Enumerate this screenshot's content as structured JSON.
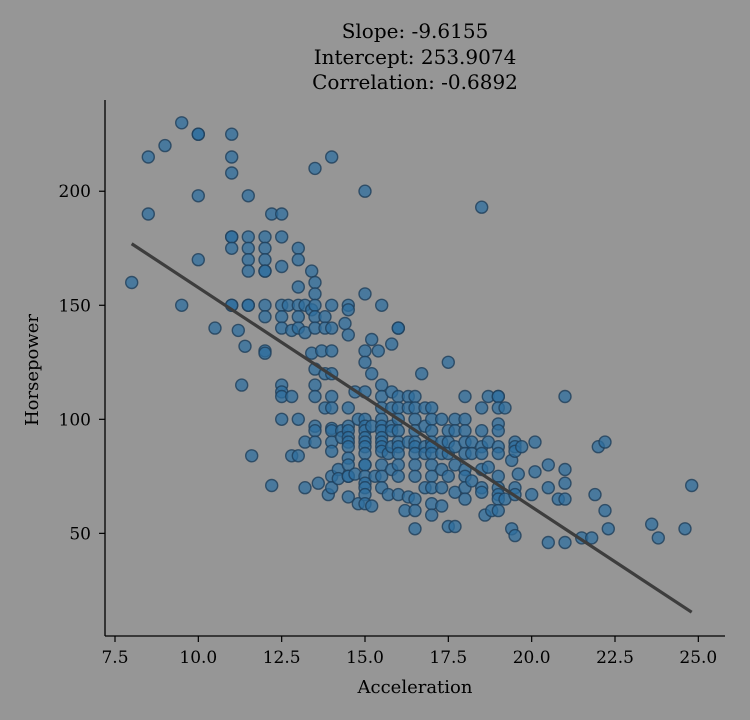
{
  "chart_data": {
    "type": "scatter",
    "title_lines": [
      "Slope: -9.6155",
      "Intercept: 253.9074",
      "Correlation: -0.6892"
    ],
    "xlabel": "Acceleration",
    "ylabel": "Horsepower",
    "xlim": [
      7.2,
      25.8
    ],
    "ylim": [
      5,
      240
    ],
    "xticks": [
      7.5,
      10.0,
      12.5,
      15.0,
      17.5,
      20.0,
      22.5,
      25.0
    ],
    "xtick_labels": [
      "7.5",
      "10.0",
      "12.5",
      "15.0",
      "17.5",
      "20.0",
      "22.5",
      "25.0"
    ],
    "yticks": [
      50,
      100,
      150,
      200
    ],
    "ytick_labels": [
      "50",
      "100",
      "150",
      "200"
    ],
    "fit_line": {
      "slope": -9.6155,
      "intercept": 253.9074,
      "x_range": [
        8.0,
        24.8
      ]
    },
    "grid": false,
    "point_color": "#2f6f9f",
    "line_color": "#3d3d3d",
    "background_color": "#969696",
    "points": [
      [
        8.0,
        160
      ],
      [
        8.5,
        215
      ],
      [
        8.5,
        190
      ],
      [
        9.0,
        220
      ],
      [
        9.5,
        230
      ],
      [
        9.5,
        150
      ],
      [
        10.0,
        225
      ],
      [
        10.0,
        225
      ],
      [
        10.0,
        198
      ],
      [
        10.0,
        170
      ],
      [
        10.5,
        140
      ],
      [
        11.0,
        225
      ],
      [
        11.0,
        215
      ],
      [
        11.0,
        208
      ],
      [
        11.0,
        180
      ],
      [
        11.0,
        180
      ],
      [
        11.0,
        175
      ],
      [
        11.0,
        150
      ],
      [
        11.0,
        150
      ],
      [
        11.2,
        139
      ],
      [
        11.3,
        115
      ],
      [
        11.4,
        132
      ],
      [
        11.5,
        198
      ],
      [
        11.5,
        180
      ],
      [
        11.5,
        175
      ],
      [
        11.5,
        170
      ],
      [
        11.5,
        165
      ],
      [
        11.5,
        150
      ],
      [
        11.5,
        150
      ],
      [
        11.6,
        84
      ],
      [
        12.0,
        180
      ],
      [
        12.0,
        175
      ],
      [
        12.0,
        170
      ],
      [
        12.0,
        165
      ],
      [
        12.0,
        165
      ],
      [
        12.0,
        150
      ],
      [
        12.0,
        145
      ],
      [
        12.0,
        130
      ],
      [
        12.0,
        129
      ],
      [
        12.2,
        190
      ],
      [
        12.2,
        71
      ],
      [
        12.5,
        190
      ],
      [
        12.5,
        180
      ],
      [
        12.5,
        167
      ],
      [
        12.5,
        150
      ],
      [
        12.5,
        145
      ],
      [
        12.5,
        140
      ],
      [
        12.5,
        115
      ],
      [
        12.5,
        112
      ],
      [
        12.5,
        110
      ],
      [
        12.5,
        100
      ],
      [
        12.7,
        150
      ],
      [
        12.8,
        139
      ],
      [
        12.8,
        110
      ],
      [
        12.8,
        84
      ],
      [
        13.0,
        175
      ],
      [
        13.0,
        170
      ],
      [
        13.0,
        158
      ],
      [
        13.0,
        150
      ],
      [
        13.0,
        145
      ],
      [
        13.0,
        140
      ],
      [
        13.0,
        100
      ],
      [
        13.0,
        84
      ],
      [
        13.2,
        150
      ],
      [
        13.2,
        138
      ],
      [
        13.2,
        90
      ],
      [
        13.2,
        70
      ],
      [
        13.4,
        165
      ],
      [
        13.4,
        148
      ],
      [
        13.4,
        129
      ],
      [
        13.5,
        160
      ],
      [
        13.5,
        155
      ],
      [
        13.5,
        150
      ],
      [
        13.5,
        145
      ],
      [
        13.5,
        140
      ],
      [
        13.5,
        122
      ],
      [
        13.5,
        115
      ],
      [
        13.5,
        110
      ],
      [
        13.5,
        97
      ],
      [
        13.5,
        95
      ],
      [
        13.5,
        210
      ],
      [
        13.5,
        90
      ],
      [
        13.6,
        72
      ],
      [
        13.7,
        130
      ],
      [
        13.8,
        145
      ],
      [
        13.8,
        140
      ],
      [
        13.8,
        120
      ],
      [
        13.8,
        105
      ],
      [
        13.9,
        67
      ],
      [
        14.0,
        215
      ],
      [
        14.0,
        150
      ],
      [
        14.0,
        140
      ],
      [
        14.0,
        130
      ],
      [
        14.0,
        120
      ],
      [
        14.0,
        110
      ],
      [
        14.0,
        105
      ],
      [
        14.0,
        96
      ],
      [
        14.0,
        95
      ],
      [
        14.0,
        90
      ],
      [
        14.0,
        86
      ],
      [
        14.0,
        75
      ],
      [
        14.0,
        70
      ],
      [
        14.2,
        78
      ],
      [
        14.2,
        74
      ],
      [
        14.3,
        95
      ],
      [
        14.3,
        92
      ],
      [
        14.4,
        142
      ],
      [
        14.5,
        150
      ],
      [
        14.5,
        148
      ],
      [
        14.5,
        137
      ],
      [
        14.5,
        105
      ],
      [
        14.5,
        97
      ],
      [
        14.5,
        95
      ],
      [
        14.5,
        92
      ],
      [
        14.5,
        90
      ],
      [
        14.5,
        88
      ],
      [
        14.5,
        83
      ],
      [
        14.5,
        80
      ],
      [
        14.5,
        75
      ],
      [
        14.5,
        75
      ],
      [
        14.5,
        66
      ],
      [
        14.7,
        112
      ],
      [
        14.7,
        76
      ],
      [
        14.8,
        100
      ],
      [
        14.8,
        63
      ],
      [
        15.0,
        200
      ],
      [
        15.0,
        155
      ],
      [
        15.0,
        130
      ],
      [
        15.0,
        125
      ],
      [
        15.0,
        112
      ],
      [
        15.0,
        100
      ],
      [
        15.0,
        97
      ],
      [
        15.0,
        95
      ],
      [
        15.0,
        92
      ],
      [
        15.0,
        90
      ],
      [
        15.0,
        88
      ],
      [
        15.0,
        85
      ],
      [
        15.0,
        80
      ],
      [
        15.0,
        80
      ],
      [
        15.0,
        75
      ],
      [
        15.0,
        72
      ],
      [
        15.0,
        70
      ],
      [
        15.0,
        67
      ],
      [
        15.0,
        63
      ],
      [
        15.2,
        135
      ],
      [
        15.2,
        120
      ],
      [
        15.2,
        97
      ],
      [
        15.2,
        62
      ],
      [
        15.3,
        75
      ],
      [
        15.4,
        130
      ],
      [
        15.5,
        150
      ],
      [
        15.5,
        115
      ],
      [
        15.5,
        110
      ],
      [
        15.5,
        105
      ],
      [
        15.5,
        100
      ],
      [
        15.5,
        97
      ],
      [
        15.5,
        95
      ],
      [
        15.5,
        92
      ],
      [
        15.5,
        90
      ],
      [
        15.5,
        88
      ],
      [
        15.5,
        86
      ],
      [
        15.5,
        80
      ],
      [
        15.5,
        75
      ],
      [
        15.5,
        70
      ],
      [
        15.7,
        85
      ],
      [
        15.7,
        67
      ],
      [
        15.8,
        133
      ],
      [
        15.8,
        112
      ],
      [
        15.8,
        105
      ],
      [
        15.8,
        97
      ],
      [
        15.8,
        95
      ],
      [
        15.8,
        88
      ],
      [
        15.8,
        78
      ],
      [
        16.0,
        140
      ],
      [
        16.0,
        140
      ],
      [
        16.0,
        110
      ],
      [
        16.0,
        105
      ],
      [
        16.0,
        100
      ],
      [
        16.0,
        95
      ],
      [
        16.0,
        90
      ],
      [
        16.0,
        88
      ],
      [
        16.0,
        85
      ],
      [
        16.0,
        80
      ],
      [
        16.0,
        75
      ],
      [
        16.0,
        67
      ],
      [
        16.2,
        60
      ],
      [
        16.3,
        110
      ],
      [
        16.3,
        105
      ],
      [
        16.3,
        90
      ],
      [
        16.3,
        66
      ],
      [
        16.5,
        110
      ],
      [
        16.5,
        105
      ],
      [
        16.5,
        100
      ],
      [
        16.5,
        95
      ],
      [
        16.5,
        90
      ],
      [
        16.5,
        88
      ],
      [
        16.5,
        85
      ],
      [
        16.5,
        80
      ],
      [
        16.5,
        75
      ],
      [
        16.5,
        65
      ],
      [
        16.5,
        60
      ],
      [
        16.5,
        52
      ],
      [
        16.7,
        120
      ],
      [
        16.8,
        105
      ],
      [
        16.8,
        97
      ],
      [
        16.8,
        88
      ],
      [
        16.8,
        85
      ],
      [
        16.8,
        70
      ],
      [
        17.0,
        105
      ],
      [
        17.0,
        100
      ],
      [
        17.0,
        95
      ],
      [
        17.0,
        90
      ],
      [
        17.0,
        88
      ],
      [
        17.0,
        85
      ],
      [
        17.0,
        80
      ],
      [
        17.0,
        75
      ],
      [
        17.0,
        70
      ],
      [
        17.0,
        63
      ],
      [
        17.0,
        58
      ],
      [
        17.3,
        100
      ],
      [
        17.3,
        90
      ],
      [
        17.3,
        85
      ],
      [
        17.3,
        78
      ],
      [
        17.3,
        70
      ],
      [
        17.3,
        62
      ],
      [
        17.5,
        125
      ],
      [
        17.5,
        95
      ],
      [
        17.5,
        90
      ],
      [
        17.5,
        85
      ],
      [
        17.5,
        75
      ],
      [
        17.5,
        53
      ],
      [
        17.7,
        100
      ],
      [
        17.7,
        95
      ],
      [
        17.7,
        88
      ],
      [
        17.7,
        80
      ],
      [
        17.7,
        68
      ],
      [
        17.7,
        53
      ],
      [
        18.0,
        110
      ],
      [
        18.0,
        100
      ],
      [
        18.0,
        95
      ],
      [
        18.0,
        90
      ],
      [
        18.0,
        85
      ],
      [
        18.0,
        78
      ],
      [
        18.0,
        75
      ],
      [
        18.0,
        70
      ],
      [
        18.0,
        65
      ],
      [
        18.2,
        90
      ],
      [
        18.2,
        85
      ],
      [
        18.2,
        73
      ],
      [
        18.5,
        193
      ],
      [
        18.5,
        105
      ],
      [
        18.5,
        95
      ],
      [
        18.5,
        88
      ],
      [
        18.5,
        85
      ],
      [
        18.5,
        78
      ],
      [
        18.5,
        70
      ],
      [
        18.5,
        68
      ],
      [
        18.6,
        58
      ],
      [
        18.7,
        110
      ],
      [
        18.7,
        90
      ],
      [
        18.7,
        79
      ],
      [
        18.8,
        60
      ],
      [
        19.0,
        110
      ],
      [
        19.0,
        110
      ],
      [
        19.0,
        105
      ],
      [
        19.0,
        98
      ],
      [
        19.0,
        95
      ],
      [
        19.0,
        88
      ],
      [
        19.0,
        85
      ],
      [
        19.0,
        75
      ],
      [
        19.0,
        70
      ],
      [
        19.0,
        67
      ],
      [
        19.0,
        65
      ],
      [
        19.0,
        60
      ],
      [
        19.2,
        105
      ],
      [
        19.2,
        65
      ],
      [
        19.4,
        82
      ],
      [
        19.4,
        52
      ],
      [
        19.5,
        90
      ],
      [
        19.5,
        88
      ],
      [
        19.5,
        86
      ],
      [
        19.5,
        70
      ],
      [
        19.5,
        67
      ],
      [
        19.5,
        49
      ],
      [
        19.6,
        76
      ],
      [
        19.7,
        88
      ],
      [
        20.0,
        67
      ],
      [
        20.1,
        90
      ],
      [
        20.1,
        77
      ],
      [
        20.5,
        80
      ],
      [
        20.5,
        70
      ],
      [
        20.5,
        46
      ],
      [
        20.8,
        65
      ],
      [
        21.0,
        110
      ],
      [
        21.0,
        78
      ],
      [
        21.0,
        72
      ],
      [
        21.0,
        65
      ],
      [
        21.0,
        46
      ],
      [
        21.5,
        48
      ],
      [
        21.8,
        48
      ],
      [
        21.9,
        67
      ],
      [
        22.0,
        88
      ],
      [
        22.2,
        60
      ],
      [
        22.3,
        52
      ],
      [
        22.2,
        90
      ],
      [
        23.6,
        54
      ],
      [
        23.8,
        48
      ],
      [
        24.6,
        52
      ],
      [
        24.8,
        71
      ]
    ]
  }
}
